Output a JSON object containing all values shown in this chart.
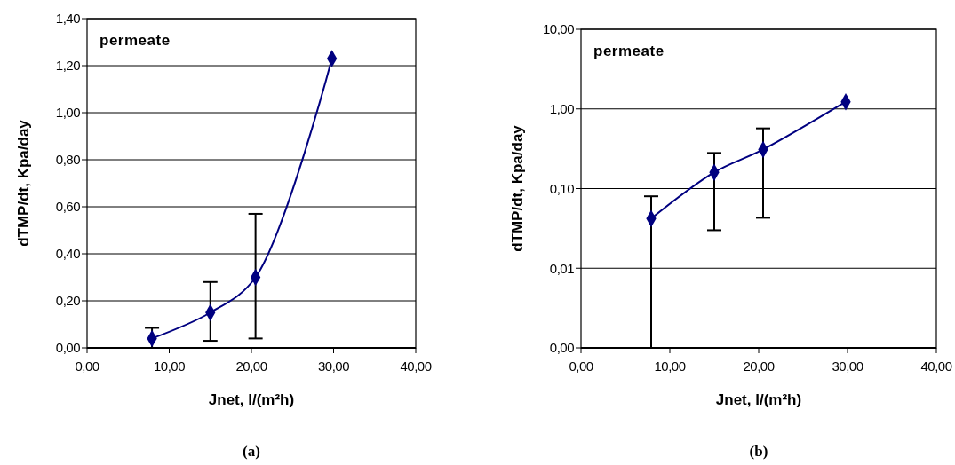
{
  "chart_data": [
    {
      "type": "line",
      "title": "(a)",
      "xlabel": "Jnet, l/(m²h)",
      "ylabel": "dTMP/dt, Kpa/day",
      "annotations": [
        "permeate"
      ],
      "x": [
        7.9,
        15.0,
        20.5,
        29.8
      ],
      "series": [
        {
          "color": "#000080",
          "values": [
            0.04,
            0.15,
            0.3,
            1.23
          ],
          "errors": [
            [
              0.0,
              0.085
            ],
            [
              0.03,
              0.28
            ],
            [
              0.04,
              0.57
            ],
            null
          ]
        }
      ],
      "xlim": [
        0,
        40
      ],
      "xticks": [
        {
          "value": 0,
          "label": "0,00"
        },
        {
          "value": 10,
          "label": "10,00"
        },
        {
          "value": 20,
          "label": "20,00"
        },
        {
          "value": 30,
          "label": "30,00"
        },
        {
          "value": 40,
          "label": "40,00"
        }
      ],
      "ylim": [
        0,
        1.4
      ],
      "yticks": [
        {
          "value": 0,
          "label": "0,00"
        },
        {
          "value": 0.2,
          "label": "0,20"
        },
        {
          "value": 0.4,
          "label": "0,40"
        },
        {
          "value": 0.6,
          "label": "0,60"
        },
        {
          "value": 0.8,
          "label": "0,80"
        },
        {
          "value": 1.0,
          "label": "1,00"
        },
        {
          "value": 1.2,
          "label": "1,20"
        },
        {
          "value": 1.4,
          "label": "1,40"
        }
      ],
      "grid": "y",
      "marker": "diamond",
      "line_style": "solid"
    },
    {
      "type": "line",
      "title": "(b)",
      "xlabel": "Jnet, l/(m²h)",
      "ylabel": "dTMP/dt, Kpa/day",
      "annotations": [
        "permeate"
      ],
      "x": [
        7.9,
        15.0,
        20.5,
        29.8
      ],
      "series": [
        {
          "color": "#000080",
          "values": [
            0.042,
            0.16,
            0.31,
            1.23
          ],
          "errors": [
            [
              0.001,
              0.08
            ],
            [
              0.03,
              0.28
            ],
            [
              0.043,
              0.57
            ],
            null
          ]
        }
      ],
      "xlim": [
        0,
        40
      ],
      "xticks": [
        {
          "value": 0,
          "label": "0,00"
        },
        {
          "value": 10,
          "label": "10,00"
        },
        {
          "value": 20,
          "label": "20,00"
        },
        {
          "value": 30,
          "label": "30,00"
        },
        {
          "value": 40,
          "label": "40,00"
        }
      ],
      "ylim": [
        0.001,
        10
      ],
      "yticks": [
        {
          "value": 0.001,
          "label": "0,00"
        },
        {
          "value": 0.01,
          "label": "0,01"
        },
        {
          "value": 0.1,
          "label": "0,10"
        },
        {
          "value": 1,
          "label": "1,00"
        },
        {
          "value": 10,
          "label": "10,00"
        }
      ],
      "log": "y",
      "grid": "y",
      "marker": "diamond",
      "line_style": "solid"
    }
  ]
}
